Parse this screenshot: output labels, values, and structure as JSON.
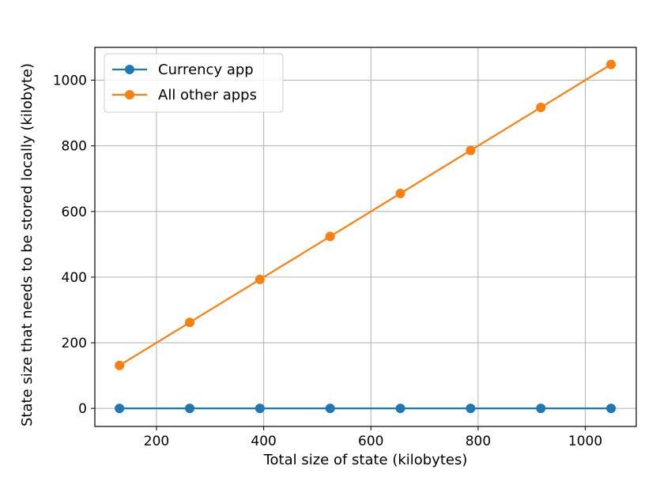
{
  "chart_data": {
    "type": "line",
    "title": "",
    "xlabel": "Total size of state (kilobytes)",
    "ylabel": "State size that needs to be stored locally (kilobyte)",
    "xlim": [
      85,
      1095
    ],
    "ylim": [
      -55,
      1100
    ],
    "x_ticks": [
      200,
      400,
      600,
      800,
      1000
    ],
    "y_ticks": [
      0,
      200,
      400,
      600,
      800,
      1000
    ],
    "grid": true,
    "legend_position": "top-left",
    "x": [
      131,
      262,
      393,
      524,
      655,
      786,
      917,
      1048
    ],
    "series": [
      {
        "name": "Currency app",
        "color": "#1f77b4",
        "marker": "circle",
        "values": [
          0,
          0,
          0,
          0,
          0,
          0,
          0,
          0
        ]
      },
      {
        "name": "All other apps",
        "color": "#ff7f0e",
        "marker": "circle",
        "values": [
          131,
          262,
          393,
          524,
          655,
          786,
          917,
          1048
        ]
      }
    ]
  }
}
